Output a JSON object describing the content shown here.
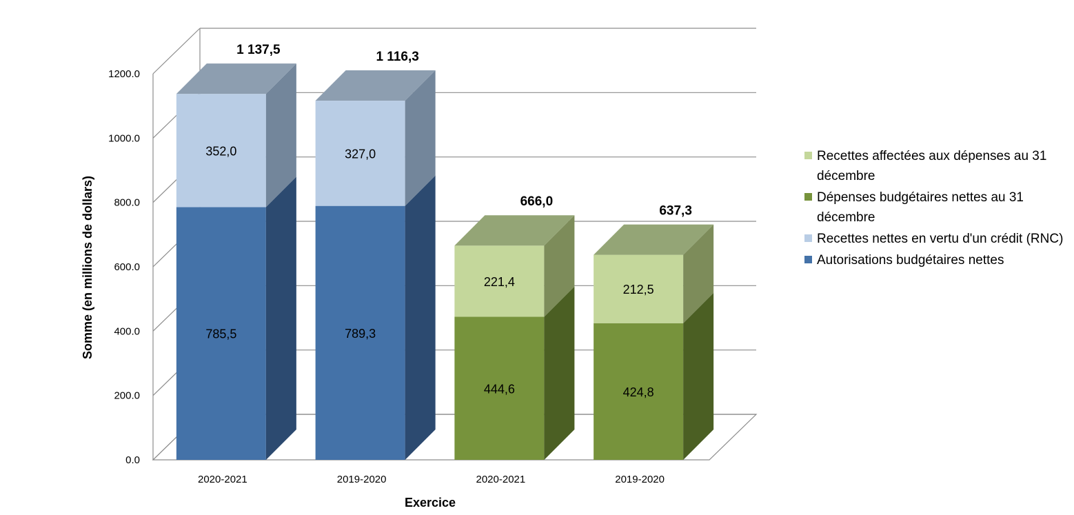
{
  "chart_data": {
    "type": "bar",
    "stacked": true,
    "three_d": true,
    "categories": [
      "2020-2021",
      "2019-2020",
      "2020-2021",
      "2019-2020"
    ],
    "xlabel": "Exercice",
    "ylabel": "Somme (en millions de dollars)",
    "ylim": [
      0,
      1200
    ],
    "ytick_step": 200,
    "ytick_labels": [
      "0.0",
      "200.0",
      "400.0",
      "600.0",
      "800.0",
      "1000.0",
      "1200.0"
    ],
    "grid": true,
    "legend_position": "right",
    "bars": [
      {
        "category": "2020-2021",
        "total": 1137.5,
        "total_label": "1 137,5",
        "segments": [
          {
            "series": "Autorisations budgétaires nettes",
            "value": 785.5,
            "label": "785,5"
          },
          {
            "series": "Recettes nettes en vertu d'un crédit (RNC)",
            "value": 352.0,
            "label": "352,0"
          }
        ]
      },
      {
        "category": "2019-2020",
        "total": 1116.3,
        "total_label": "1 116,3",
        "segments": [
          {
            "series": "Autorisations budgétaires nettes",
            "value": 789.3,
            "label": "789,3"
          },
          {
            "series": "Recettes nettes en vertu d'un crédit (RNC)",
            "value": 327.0,
            "label": "327,0"
          }
        ]
      },
      {
        "category": "2020-2021",
        "total": 666.0,
        "total_label": "666,0",
        "segments": [
          {
            "series": "Dépenses budgétaires nettes au 31 décembre",
            "value": 444.6,
            "label": "444,6"
          },
          {
            "series": "Recettes affectées aux dépenses au 31 décembre",
            "value": 221.4,
            "label": "221,4"
          }
        ]
      },
      {
        "category": "2019-2020",
        "total": 637.3,
        "total_label": "637,3",
        "segments": [
          {
            "series": "Dépenses budgétaires nettes au 31 décembre",
            "value": 424.8,
            "label": "424,8"
          },
          {
            "series": "Recettes affectées aux dépenses au 31 décembre",
            "value": 212.5,
            "label": "212,5"
          }
        ]
      }
    ],
    "series": [
      {
        "name": "Recettes affectées aux dépenses au 31 décembre",
        "color": "#c4d79b",
        "side": "#7d8c5a",
        "top": "#94a576"
      },
      {
        "name": "Dépenses budgétaires nettes au 31 décembre",
        "color": "#77933c",
        "side": "#4b5f23",
        "top": "#94a576"
      },
      {
        "name": "Recettes nettes en vertu d'un crédit (RNC)",
        "color": "#b9cde5",
        "side": "#73869b",
        "top": "#8d9eb0"
      },
      {
        "name": "Autorisations budgétaires nettes",
        "color": "#4472a8",
        "side": "#2c4a70",
        "top": "#8d9eb0"
      }
    ],
    "legend": [
      {
        "label": "Recettes affectées aux dépenses au 31 décembre",
        "color": "#c4d79b"
      },
      {
        "label": "Dépenses budgétaires nettes au 31 décembre",
        "color": "#77933c"
      },
      {
        "label": "Recettes nettes en vertu d'un crédit (RNC)",
        "color": "#b9cde5"
      },
      {
        "label": "Autorisations budgétaires nettes",
        "color": "#4472a8"
      }
    ]
  }
}
